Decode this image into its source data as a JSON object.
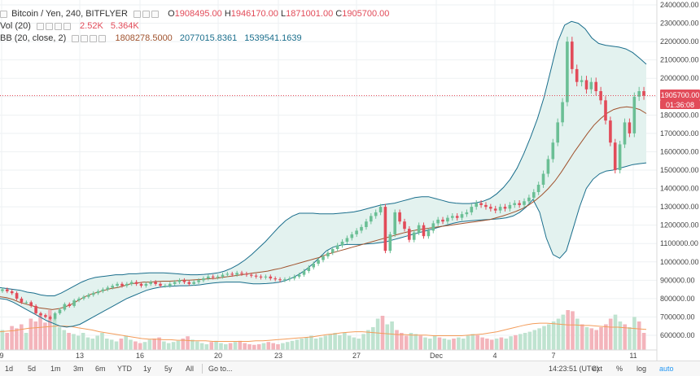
{
  "legend": {
    "symbol": "Bitcoin / Yen, 240, BITFLYER",
    "o_label": "O",
    "o_value": "1908495.00",
    "h_label": "H",
    "h_value": "1946170.00",
    "l_label": "L",
    "l_value": "1871001.00",
    "c_label": "C",
    "c_value": "1905700.00",
    "vol_label": "Vol (20)",
    "vol_value1": "2.52K",
    "vol_value2": "5.364K",
    "bb_label": "BB (20, close, 2)",
    "bb_basis": "1808278.5000",
    "bb_upper": "2077015.8361",
    "bb_lower": "1539541.1639"
  },
  "price_tag": {
    "price": "1905700.00",
    "countdown": "01:36:08"
  },
  "bottom_bar": {
    "ranges": [
      "1d",
      "5d",
      "1m",
      "3m",
      "6m",
      "YTD",
      "1y",
      "5y",
      "All"
    ],
    "goto": "Go to...",
    "time": "14:23:51 (UTC)",
    "options": [
      "ext",
      "%",
      "log",
      "auto"
    ]
  },
  "colors": {
    "up": "#6bbf95",
    "down": "#e24b59",
    "bb": "#1a6e8c",
    "bb_fill": "#e3f2ef",
    "basis": "#a0522d",
    "vol_ma": "#f39c5a"
  },
  "chart_data": {
    "type": "candlestick",
    "title": "Bitcoin / Yen, 240, BITFLYER",
    "x_ticks": [
      "9",
      "13",
      "16",
      "20",
      "23",
      "27",
      "Dec",
      "4",
      "7",
      "11"
    ],
    "y_ticks": [
      600000,
      700000,
      800000,
      900000,
      1000000,
      1100000,
      1200000,
      1300000,
      1400000,
      1500000,
      1600000,
      1700000,
      1800000,
      1900000,
      2000000,
      2100000,
      2200000,
      2300000,
      2400000
    ],
    "ylim": [
      600000,
      2400000
    ],
    "closes": [
      850000,
      840000,
      830000,
      800000,
      780000,
      780000,
      760000,
      720000,
      710000,
      700000,
      690000,
      720000,
      740000,
      770000,
      760000,
      790000,
      800000,
      810000,
      820000,
      830000,
      840000,
      850000,
      860000,
      870000,
      880000,
      870000,
      880000,
      890000,
      880000,
      870000,
      880000,
      890000,
      880000,
      870000,
      870000,
      880000,
      890000,
      900000,
      890000,
      880000,
      890000,
      900000,
      910000,
      920000,
      915000,
      920000,
      930000,
      935000,
      930000,
      940000,
      935000,
      930000,
      925000,
      920000,
      915000,
      920000,
      910000,
      905000,
      900000,
      905000,
      910000,
      920000,
      930000,
      950000,
      970000,
      990000,
      1010000,
      1030000,
      1050000,
      1070000,
      1090000,
      1110000,
      1130000,
      1150000,
      1170000,
      1190000,
      1220000,
      1250000,
      1270000,
      1300000,
      1060000,
      1150000,
      1270000,
      1220000,
      1180000,
      1120000,
      1160000,
      1200000,
      1140000,
      1170000,
      1210000,
      1230000,
      1220000,
      1240000,
      1250000,
      1240000,
      1260000,
      1270000,
      1300000,
      1320000,
      1310000,
      1300000,
      1290000,
      1280000,
      1300000,
      1290000,
      1310000,
      1320000,
      1310000,
      1330000,
      1350000,
      1380000,
      1420000,
      1480000,
      1560000,
      1650000,
      1760000,
      1870000,
      2200000,
      2050000,
      1980000,
      1990000,
      1940000,
      1980000,
      1930000,
      1880000,
      1770000,
      1650000,
      1500000,
      1640000,
      1760000,
      1700000,
      1900000,
      1930000,
      1905700
    ],
    "basis": [
      810000,
      805000,
      795000,
      780000,
      770000,
      760000,
      750000,
      745000,
      740000,
      745000,
      755000,
      770000,
      790000,
      810000,
      825000,
      835000,
      845000,
      855000,
      860000,
      870000,
      880000,
      885000,
      890000,
      890000,
      893000,
      895000,
      895000,
      897000,
      900000,
      900000,
      903000,
      905000,
      908000,
      910000,
      915000,
      920000,
      925000,
      930000,
      935000,
      940000,
      945000,
      950000,
      958000,
      965000,
      975000,
      985000,
      995000,
      1005000,
      1015000,
      1025000,
      1040000,
      1050000,
      1060000,
      1070000,
      1080000,
      1090000,
      1100000,
      1110000,
      1120000,
      1130000,
      1140000,
      1150000,
      1160000,
      1168000,
      1175000,
      1180000,
      1185000,
      1190000,
      1195000,
      1200000,
      1205000,
      1210000,
      1215000,
      1220000,
      1225000,
      1230000,
      1240000,
      1250000,
      1262000,
      1275000,
      1290000,
      1310000,
      1335000,
      1365000,
      1400000,
      1440000,
      1490000,
      1545000,
      1600000,
      1650000,
      1700000,
      1745000,
      1780000,
      1810000,
      1830000,
      1840000,
      1845000,
      1840000,
      1830000,
      1808278
    ],
    "upper_band": [
      860000,
      855000,
      850000,
      845000,
      835000,
      830000,
      820000,
      815000,
      815000,
      830000,
      850000,
      870000,
      890000,
      905000,
      915000,
      920000,
      925000,
      930000,
      930000,
      935000,
      935000,
      938000,
      940000,
      940000,
      940000,
      938000,
      935000,
      932000,
      930000,
      930000,
      932000,
      935000,
      940000,
      950000,
      965000,
      985000,
      1010000,
      1040000,
      1075000,
      1110000,
      1150000,
      1190000,
      1225000,
      1250000,
      1265000,
      1265000,
      1265000,
      1262000,
      1262000,
      1262000,
      1265000,
      1268000,
      1272000,
      1280000,
      1290000,
      1300000,
      1310000,
      1315000,
      1320000,
      1330000,
      1340000,
      1350000,
      1355000,
      1355000,
      1345000,
      1335000,
      1325000,
      1320000,
      1318000,
      1318000,
      1322000,
      1330000,
      1345000,
      1370000,
      1405000,
      1450000,
      1510000,
      1590000,
      1680000,
      1780000,
      1900000,
      2050000,
      2200000,
      2290000,
      2310000,
      2300000,
      2270000,
      2220000,
      2190000,
      2180000,
      2175000,
      2170000,
      2160000,
      2140000,
      2110000,
      2077015
    ],
    "lower_band": [
      800000,
      795000,
      780000,
      760000,
      740000,
      720000,
      700000,
      680000,
      665000,
      650000,
      645000,
      650000,
      660000,
      680000,
      700000,
      720000,
      740000,
      760000,
      780000,
      800000,
      815000,
      830000,
      845000,
      855000,
      862000,
      866000,
      868000,
      870000,
      870000,
      872000,
      875000,
      880000,
      885000,
      888000,
      890000,
      890000,
      890000,
      885000,
      880000,
      880000,
      882000,
      885000,
      890000,
      900000,
      915000,
      935000,
      960000,
      990000,
      1025000,
      1060000,
      1080000,
      1090000,
      1095000,
      1095000,
      1095000,
      1098000,
      1100000,
      1105000,
      1110000,
      1120000,
      1130000,
      1140000,
      1150000,
      1160000,
      1170000,
      1180000,
      1190000,
      1200000,
      1210000,
      1218000,
      1222000,
      1225000,
      1228000,
      1230000,
      1232000,
      1235000,
      1240000,
      1250000,
      1270000,
      1300000,
      1340000,
      1270000,
      1130000,
      1040000,
      1020000,
      1060000,
      1180000,
      1300000,
      1400000,
      1450000,
      1480000,
      1495000,
      1500000,
      1510000,
      1520000,
      1530000,
      1535000,
      1539541
    ],
    "volume_pct": [
      0.35,
      0.3,
      0.42,
      0.38,
      0.45,
      0.3,
      0.55,
      0.5,
      0.62,
      0.48,
      0.7,
      0.55,
      0.4,
      0.35,
      0.3,
      0.28,
      0.25,
      0.3,
      0.22,
      0.2,
      0.25,
      0.3,
      0.2,
      0.18,
      0.15,
      0.2,
      0.25,
      0.18,
      0.15,
      0.12,
      0.14,
      0.18,
      0.2,
      0.22,
      0.15,
      0.12,
      0.14,
      0.16,
      0.2,
      0.24,
      0.18,
      0.15,
      0.12,
      0.1,
      0.14,
      0.16,
      0.12,
      0.1,
      0.12,
      0.14,
      0.16,
      0.12,
      0.1,
      0.09,
      0.1,
      0.12,
      0.14,
      0.12,
      0.1,
      0.12,
      0.14,
      0.16,
      0.18,
      0.2,
      0.22,
      0.25,
      0.2,
      0.22,
      0.25,
      0.28,
      0.3,
      0.26,
      0.3,
      0.25,
      0.22,
      0.2,
      0.28,
      0.35,
      0.4,
      0.55,
      0.6,
      0.45,
      0.5,
      0.35,
      0.3,
      0.25,
      0.3,
      0.28,
      0.25,
      0.22,
      0.2,
      0.25,
      0.22,
      0.2,
      0.18,
      0.2,
      0.22,
      0.2,
      0.25,
      0.28,
      0.26,
      0.22,
      0.2,
      0.18,
      0.2,
      0.22,
      0.2,
      0.24,
      0.26,
      0.28,
      0.3,
      0.32,
      0.35,
      0.38,
      0.42,
      0.45,
      0.5,
      0.55,
      0.62,
      0.7,
      0.68,
      0.55,
      0.45,
      0.4,
      0.38,
      0.35,
      0.4,
      0.45,
      0.55,
      0.62,
      0.5,
      0.45,
      0.4,
      0.58,
      0.5,
      0.3
    ],
    "volume_ma_pct": [
      0.32,
      0.33,
      0.34,
      0.36,
      0.38,
      0.39,
      0.4,
      0.41,
      0.42,
      0.42,
      0.41,
      0.39,
      0.37,
      0.35,
      0.32,
      0.3,
      0.28,
      0.26,
      0.24,
      0.22,
      0.2,
      0.19,
      0.19,
      0.18,
      0.18,
      0.17,
      0.17,
      0.16,
      0.16,
      0.16,
      0.15,
      0.15,
      0.15,
      0.15,
      0.15,
      0.15,
      0.16,
      0.16,
      0.17,
      0.18,
      0.19,
      0.2,
      0.21,
      0.22,
      0.23,
      0.25,
      0.27,
      0.28,
      0.3,
      0.31,
      0.32,
      0.32,
      0.31,
      0.3,
      0.29,
      0.28,
      0.27,
      0.27,
      0.26,
      0.26,
      0.26,
      0.25,
      0.25,
      0.25,
      0.25,
      0.25,
      0.26,
      0.27,
      0.28,
      0.3,
      0.32,
      0.35,
      0.38,
      0.41,
      0.44,
      0.46,
      0.47,
      0.47,
      0.46,
      0.45,
      0.44,
      0.44,
      0.43,
      0.43,
      0.42,
      0.41,
      0.4,
      0.4,
      0.39,
      0.38,
      0.37,
      0.36
    ]
  }
}
